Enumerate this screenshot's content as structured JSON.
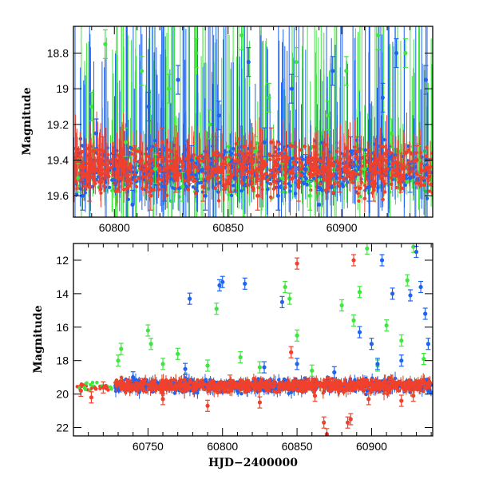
{
  "chart_data": [
    {
      "type": "scatter",
      "title": "",
      "xlabel": "",
      "ylabel": "Magnitude",
      "xlim": [
        60782,
        60940
      ],
      "ylim": [
        19.72,
        18.65
      ],
      "y_inverted": true,
      "x_ticks": [
        60800,
        60850,
        60900
      ],
      "x_tick_labels": [
        "60800",
        "60850",
        "60900"
      ],
      "y_ticks": [
        18.8,
        19.0,
        19.2,
        19.4,
        19.6
      ],
      "y_tick_labels": [
        "18.8",
        "19",
        "19.2",
        "19.4",
        "19.6"
      ],
      "grid": false,
      "series": [
        {
          "color": "#3ee63e",
          "points": [
            [
              60784,
              19.5
            ],
            [
              60790,
              19.1
            ],
            [
              60796,
              18.75
            ],
            [
              60805,
              19.3
            ],
            [
              60812,
              18.9
            ],
            [
              60818,
              19.45
            ],
            [
              60824,
              19.0
            ],
            [
              60830,
              19.55
            ],
            [
              60836,
              18.8
            ],
            [
              60842,
              19.2
            ],
            [
              60850,
              19.4
            ],
            [
              60856,
              18.7
            ],
            [
              60862,
              19.35
            ],
            [
              60868,
              19.05
            ],
            [
              60874,
              19.5
            ],
            [
              60880,
              18.85
            ],
            [
              60886,
              19.6
            ],
            [
              60894,
              19.15
            ],
            [
              60902,
              18.9
            ],
            [
              60910,
              19.45
            ],
            [
              60916,
              18.7
            ],
            [
              60922,
              19.25
            ],
            [
              60928,
              18.8
            ],
            [
              60934,
              19.4
            ]
          ]
        },
        {
          "color": "#1e64f0",
          "points": [
            [
              60786,
              19.6
            ],
            [
              60792,
              19.25
            ],
            [
              60800,
              19.45
            ],
            [
              60808,
              19.65
            ],
            [
              60815,
              19.1
            ],
            [
              60822,
              19.55
            ],
            [
              60828,
              18.95
            ],
            [
              60834,
              19.4
            ],
            [
              60840,
              19.6
            ],
            [
              60846,
              19.15
            ],
            [
              60853,
              19.5
            ],
            [
              60859,
              18.85
            ],
            [
              60866,
              19.3
            ],
            [
              60872,
              19.6
            ],
            [
              60878,
              19.0
            ],
            [
              60884,
              19.45
            ],
            [
              60890,
              19.65
            ],
            [
              60896,
              18.9
            ],
            [
              60904,
              19.35
            ],
            [
              60912,
              19.55
            ],
            [
              60918,
              19.05
            ],
            [
              60924,
              18.8
            ],
            [
              60930,
              19.5
            ],
            [
              60937,
              18.95
            ]
          ]
        },
        {
          "color": "#f0412d",
          "points": [
            [
              60783,
              19.45
            ],
            [
              60789,
              19.55
            ],
            [
              60795,
              19.35
            ],
            [
              60802,
              19.5
            ],
            [
              60809,
              19.4
            ],
            [
              60816,
              19.6
            ],
            [
              60821,
              19.3
            ],
            [
              60827,
              19.5
            ],
            [
              60833,
              19.45
            ],
            [
              60839,
              19.55
            ],
            [
              60845,
              19.35
            ],
            [
              60851,
              19.5
            ],
            [
              60857,
              19.4
            ],
            [
              60863,
              19.6
            ],
            [
              60869,
              19.3
            ],
            [
              60875,
              19.45
            ],
            [
              60881,
              19.55
            ],
            [
              60888,
              19.4
            ],
            [
              60899,
              19.5
            ],
            [
              60907,
              19.35
            ],
            [
              60914,
              19.55
            ],
            [
              60920,
              19.45
            ],
            [
              60926,
              19.5
            ],
            [
              60933,
              19.4
            ]
          ]
        }
      ]
    },
    {
      "type": "scatter",
      "title": "",
      "xlabel": "HJD−2400000",
      "ylabel": "Magnitude",
      "xlim": [
        60700,
        60941
      ],
      "ylim": [
        22.5,
        11
      ],
      "y_inverted": true,
      "x_ticks": [
        60750,
        60800,
        60850,
        60900
      ],
      "x_tick_labels": [
        "60750",
        "60800",
        "60850",
        "60900"
      ],
      "y_ticks": [
        12,
        14,
        16,
        18,
        20,
        22
      ],
      "y_tick_labels": [
        "12",
        "14",
        "16",
        "18",
        "20",
        "22"
      ],
      "grid": false,
      "series": [
        {
          "color": "#3ee63e",
          "points": [
            [
              60730,
              18.0
            ],
            [
              60732,
              17.3
            ],
            [
              60750,
              16.2
            ],
            [
              60752,
              17.0
            ],
            [
              60760,
              18.2
            ],
            [
              60770,
              17.6
            ],
            [
              60790,
              18.3
            ],
            [
              60796,
              14.9
            ],
            [
              60812,
              17.8
            ],
            [
              60825,
              18.4
            ],
            [
              60842,
              13.6
            ],
            [
              60845,
              14.3
            ],
            [
              60850,
              16.5
            ],
            [
              60860,
              18.6
            ],
            [
              60880,
              14.7
            ],
            [
              60888,
              15.6
            ],
            [
              60892,
              13.9
            ],
            [
              60897,
              11.3
            ],
            [
              60904,
              18.3
            ],
            [
              60910,
              15.9
            ],
            [
              60920,
              16.8
            ],
            [
              60924,
              13.2
            ],
            [
              60928,
              11.2
            ],
            [
              60935,
              17.9
            ]
          ]
        },
        {
          "color": "#1e64f0",
          "points": [
            [
              60740,
              19.0
            ],
            [
              60775,
              18.5
            ],
            [
              60778,
              14.3
            ],
            [
              60798,
              13.5
            ],
            [
              60800,
              13.3
            ],
            [
              60815,
              13.4
            ],
            [
              60828,
              18.4
            ],
            [
              60840,
              14.5
            ],
            [
              60850,
              18.2
            ],
            [
              60875,
              18.7
            ],
            [
              60892,
              16.3
            ],
            [
              60900,
              17.0
            ],
            [
              60904,
              18.2
            ],
            [
              60907,
              12.0
            ],
            [
              60914,
              14.0
            ],
            [
              60920,
              18.0
            ],
            [
              60926,
              14.1
            ],
            [
              60930,
              11.5
            ],
            [
              60933,
              13.6
            ],
            [
              60936,
              15.2
            ],
            [
              60938,
              17.0
            ]
          ]
        },
        {
          "color": "#f0412d",
          "points": [
            [
              60705,
              19.8
            ],
            [
              60712,
              20.2
            ],
            [
              60720,
              19.6
            ],
            [
              60745,
              19.4
            ],
            [
              60760,
              20.3
            ],
            [
              60790,
              20.7
            ],
            [
              60805,
              19.2
            ],
            [
              60825,
              20.5
            ],
            [
              60846,
              17.5
            ],
            [
              60850,
              12.2
            ],
            [
              60862,
              20.1
            ],
            [
              60868,
              21.7
            ],
            [
              60870,
              22.4
            ],
            [
              60884,
              21.7
            ],
            [
              60886,
              21.5
            ],
            [
              60888,
              12.0
            ],
            [
              60898,
              20.3
            ],
            [
              60920,
              20.4
            ],
            [
              60928,
              20.1
            ]
          ]
        }
      ]
    }
  ]
}
